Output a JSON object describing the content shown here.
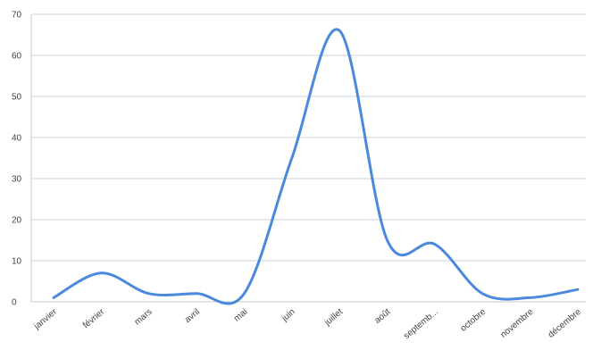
{
  "chart_data": {
    "type": "line",
    "title": "",
    "xlabel": "",
    "ylabel": "",
    "categories": [
      "janvier",
      "février",
      "mars",
      "avril",
      "mai",
      "juin",
      "juillet",
      "août",
      "septemb...",
      "octobre",
      "novembre",
      "décembre"
    ],
    "series": [
      {
        "values": [
          1,
          7,
          2,
          2,
          2,
          35,
          66,
          15,
          14,
          2,
          1,
          3
        ],
        "color": "#4a89dc"
      }
    ],
    "ylim": [
      0,
      70
    ],
    "yticks": [
      0,
      10,
      20,
      30,
      40,
      50,
      60,
      70
    ],
    "grid": true,
    "smooth": true,
    "legend": "none"
  }
}
